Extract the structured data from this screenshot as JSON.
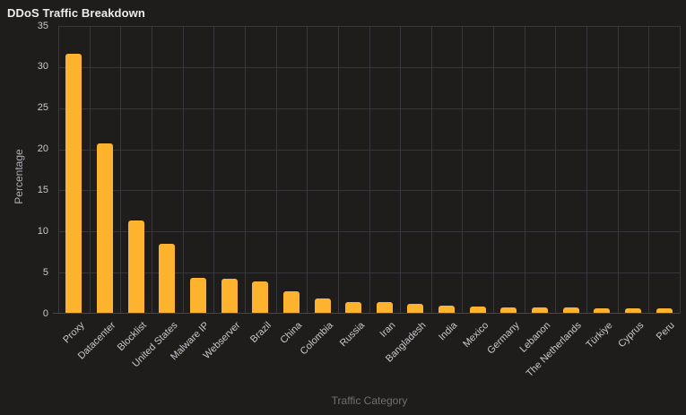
{
  "chart_data": {
    "type": "bar",
    "title": "DDoS Traffic Breakdown",
    "xlabel": "Traffic Category",
    "ylabel": "Percentage",
    "categories": [
      "Proxy",
      "Datacenter",
      "Blocklist",
      "United States",
      "Malware IP",
      "Webserver",
      "Brazil",
      "China",
      "Colombia",
      "Russia",
      "Iran",
      "Bangladesh",
      "India",
      "Mexico",
      "Germany",
      "Lebanon",
      "The Netherlands",
      "Türkiye",
      "Cyprus",
      "Peru"
    ],
    "values": [
      31.5,
      20.6,
      11.2,
      8.4,
      4.2,
      4.1,
      3.8,
      2.6,
      1.75,
      1.35,
      1.3,
      1.05,
      0.9,
      0.75,
      0.7,
      0.65,
      0.65,
      0.6,
      0.58,
      0.55
    ],
    "ylim": [
      0,
      35
    ],
    "yticks": [
      0,
      5,
      10,
      15,
      20,
      25,
      30,
      35
    ],
    "grid": "both",
    "legend": "none",
    "colors": {
      "bar": "#fdb32e",
      "background": "#1e1d1b",
      "grid": "#36373b",
      "axis_line": "#46474b",
      "title_text": "#ececec",
      "tick_text": "#c9c9ce",
      "ylabel_text": "#aeaeb4",
      "xlabel_text": "#707074"
    }
  }
}
